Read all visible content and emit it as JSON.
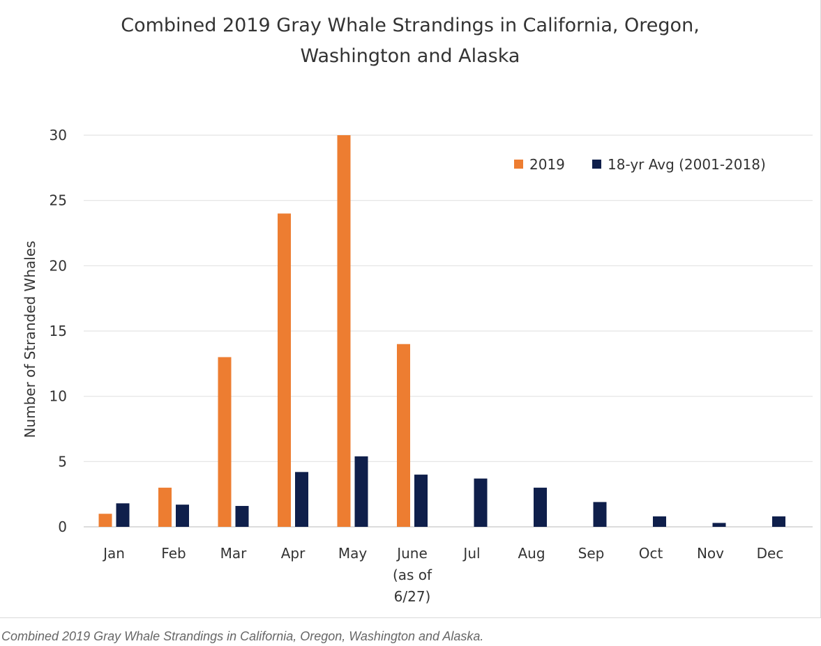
{
  "chart_data": {
    "type": "bar",
    "title_lines": [
      "Combined 2019 Gray Whale Strandings in California, Oregon,",
      "Washington and Alaska"
    ],
    "ylabel": "Number of Stranded Whales",
    "xlabel": "",
    "ylim": [
      0,
      30
    ],
    "yticks": [
      0,
      5,
      10,
      15,
      20,
      25,
      30
    ],
    "grid": true,
    "legend_position": "top-right",
    "categories": [
      [
        "Jan"
      ],
      [
        "Feb"
      ],
      [
        "Mar"
      ],
      [
        "Apr"
      ],
      [
        "May"
      ],
      [
        "June",
        "(as of",
        "6/27)"
      ],
      [
        "Jul"
      ],
      [
        "Aug"
      ],
      [
        "Sep"
      ],
      [
        "Oct"
      ],
      [
        "Nov"
      ],
      [
        "Dec"
      ]
    ],
    "series": [
      {
        "name": "2019",
        "color": "#ED7D31",
        "values": [
          1,
          3,
          13,
          24,
          30,
          14,
          null,
          null,
          null,
          null,
          null,
          null
        ]
      },
      {
        "name": "18-yr Avg (2001-2018)",
        "color": "#0F1F4B",
        "values": [
          1.8,
          1.7,
          1.6,
          4.2,
          5.4,
          4.0,
          3.7,
          3.0,
          1.9,
          0.8,
          0.3,
          0.8
        ]
      }
    ]
  },
  "caption": "Combined 2019 Gray Whale Strandings in California, Oregon, Washington and Alaska."
}
